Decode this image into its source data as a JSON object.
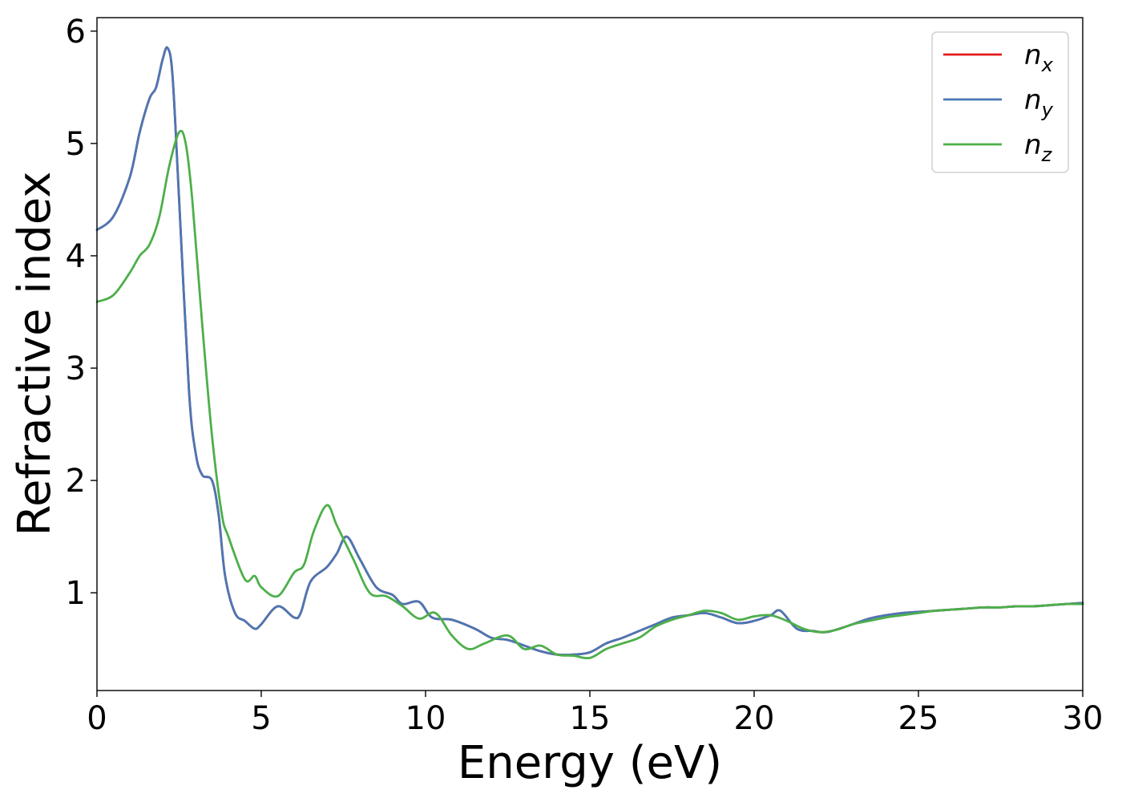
{
  "chart_data": {
    "type": "line",
    "title": "",
    "xlabel": "Energy (eV)",
    "ylabel": "Refractive index",
    "xlim": [
      0,
      30
    ],
    "ylim": [
      0.13,
      6.12
    ],
    "xticks": [
      0,
      5,
      10,
      15,
      20,
      25,
      30
    ],
    "xtick_labels": [
      "0",
      "5",
      "10",
      "15",
      "20",
      "25",
      "30"
    ],
    "yticks": [
      1,
      2,
      3,
      4,
      5,
      6
    ],
    "ytick_labels": [
      "1",
      "2",
      "3",
      "4",
      "5",
      "6"
    ],
    "grid": false,
    "legend_position": "top-right",
    "series": [
      {
        "name": "n_x",
        "label_base": "n",
        "label_sub": "x",
        "color": "#e41a1c",
        "x": [
          0,
          0.5,
          1.0,
          1.3,
          1.6,
          1.8,
          2.0,
          2.15,
          2.3,
          2.5,
          2.8,
          3.0,
          3.2,
          3.5,
          3.7,
          3.9,
          4.2,
          4.5,
          4.8,
          5.0,
          5.5,
          6.0,
          6.2,
          6.5,
          7.0,
          7.3,
          7.6,
          8.0,
          8.5,
          9.0,
          9.3,
          9.8,
          10.2,
          10.8,
          11.5,
          12.0,
          12.5,
          13.0,
          13.5,
          14.0,
          14.5,
          15.0,
          15.5,
          16.0,
          16.5,
          17.0,
          17.5,
          18.0,
          18.5,
          19.0,
          19.5,
          20.0,
          20.5,
          20.8,
          21.3,
          21.8,
          22.2,
          22.8,
          23.5,
          24.0,
          24.5,
          25.0,
          25.5,
          26.0,
          26.5,
          27.0,
          27.5,
          28.0,
          28.5,
          29.0,
          29.5,
          30.0
        ],
        "y": [
          4.23,
          4.35,
          4.7,
          5.1,
          5.4,
          5.5,
          5.75,
          5.85,
          5.6,
          4.5,
          2.8,
          2.25,
          2.05,
          2.0,
          1.7,
          1.15,
          0.82,
          0.75,
          0.68,
          0.72,
          0.88,
          0.78,
          0.82,
          1.1,
          1.23,
          1.35,
          1.5,
          1.3,
          1.05,
          0.98,
          0.9,
          0.92,
          0.78,
          0.76,
          0.68,
          0.6,
          0.58,
          0.53,
          0.48,
          0.45,
          0.45,
          0.47,
          0.55,
          0.6,
          0.66,
          0.72,
          0.78,
          0.8,
          0.82,
          0.78,
          0.73,
          0.75,
          0.8,
          0.84,
          0.68,
          0.66,
          0.65,
          0.7,
          0.77,
          0.8,
          0.82,
          0.83,
          0.84,
          0.85,
          0.86,
          0.87,
          0.87,
          0.88,
          0.88,
          0.89,
          0.9,
          0.91
        ]
      },
      {
        "name": "n_y",
        "label_base": "n",
        "label_sub": "y",
        "color": "#4a77b4",
        "x": [
          0,
          0.5,
          1.0,
          1.3,
          1.6,
          1.8,
          2.0,
          2.15,
          2.3,
          2.5,
          2.8,
          3.0,
          3.2,
          3.5,
          3.7,
          3.9,
          4.2,
          4.5,
          4.8,
          5.0,
          5.5,
          6.0,
          6.2,
          6.5,
          7.0,
          7.3,
          7.6,
          8.0,
          8.5,
          9.0,
          9.3,
          9.8,
          10.2,
          10.8,
          11.5,
          12.0,
          12.5,
          13.0,
          13.5,
          14.0,
          14.5,
          15.0,
          15.5,
          16.0,
          16.5,
          17.0,
          17.5,
          18.0,
          18.5,
          19.0,
          19.5,
          20.0,
          20.5,
          20.8,
          21.3,
          21.8,
          22.2,
          22.8,
          23.5,
          24.0,
          24.5,
          25.0,
          25.5,
          26.0,
          26.5,
          27.0,
          27.5,
          28.0,
          28.5,
          29.0,
          29.5,
          30.0
        ],
        "y": [
          4.23,
          4.35,
          4.7,
          5.1,
          5.4,
          5.5,
          5.75,
          5.85,
          5.6,
          4.5,
          2.8,
          2.25,
          2.05,
          2.0,
          1.7,
          1.15,
          0.82,
          0.75,
          0.68,
          0.72,
          0.88,
          0.78,
          0.82,
          1.1,
          1.23,
          1.35,
          1.5,
          1.3,
          1.05,
          0.98,
          0.9,
          0.92,
          0.78,
          0.76,
          0.68,
          0.6,
          0.58,
          0.53,
          0.48,
          0.45,
          0.45,
          0.47,
          0.55,
          0.6,
          0.66,
          0.72,
          0.78,
          0.8,
          0.82,
          0.78,
          0.73,
          0.75,
          0.8,
          0.84,
          0.68,
          0.66,
          0.65,
          0.7,
          0.77,
          0.8,
          0.82,
          0.83,
          0.84,
          0.85,
          0.86,
          0.87,
          0.87,
          0.88,
          0.88,
          0.89,
          0.9,
          0.91
        ]
      },
      {
        "name": "n_z",
        "label_base": "n",
        "label_sub": "z",
        "color": "#4daf4a",
        "x": [
          0,
          0.5,
          1.0,
          1.3,
          1.6,
          1.9,
          2.2,
          2.5,
          2.7,
          2.9,
          3.2,
          3.5,
          3.8,
          4.0,
          4.5,
          4.8,
          5.0,
          5.5,
          6.0,
          6.3,
          6.6,
          7.0,
          7.3,
          7.8,
          8.3,
          8.8,
          9.3,
          9.8,
          10.3,
          10.8,
          11.3,
          11.8,
          12.5,
          13.0,
          13.5,
          14.0,
          14.5,
          15.0,
          15.5,
          16.0,
          16.5,
          17.0,
          17.5,
          18.0,
          18.5,
          19.0,
          19.5,
          20.0,
          20.5,
          21.0,
          21.5,
          22.0,
          22.5,
          23.0,
          23.5,
          24.0,
          24.5,
          25.0,
          25.5,
          26.0,
          26.5,
          27.0,
          27.5,
          28.0,
          28.5,
          29.0,
          29.5,
          30.0
        ],
        "y": [
          3.59,
          3.65,
          3.85,
          4.0,
          4.1,
          4.35,
          4.8,
          5.1,
          5.0,
          4.5,
          3.4,
          2.4,
          1.7,
          1.5,
          1.12,
          1.15,
          1.05,
          0.97,
          1.18,
          1.25,
          1.55,
          1.78,
          1.6,
          1.3,
          1.0,
          0.97,
          0.88,
          0.77,
          0.82,
          0.62,
          0.5,
          0.55,
          0.62,
          0.5,
          0.53,
          0.45,
          0.44,
          0.42,
          0.5,
          0.55,
          0.6,
          0.7,
          0.76,
          0.8,
          0.84,
          0.82,
          0.76,
          0.79,
          0.8,
          0.75,
          0.68,
          0.65,
          0.67,
          0.72,
          0.75,
          0.78,
          0.8,
          0.82,
          0.84,
          0.85,
          0.86,
          0.87,
          0.87,
          0.88,
          0.88,
          0.89,
          0.9,
          0.9
        ]
      }
    ]
  }
}
